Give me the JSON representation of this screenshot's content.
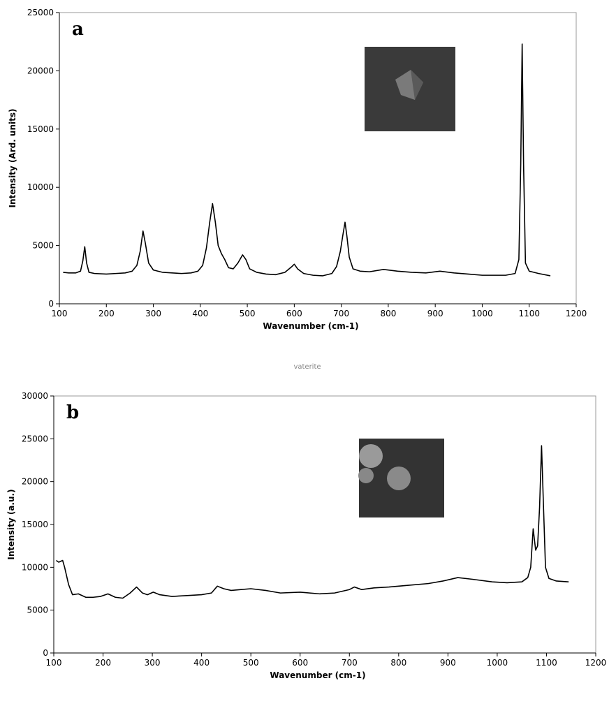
{
  "chart_data": [
    {
      "type": "line",
      "annotation": "a",
      "x_label": "Wavenumber (cm-1)",
      "y_label": "Intensity (Ard. units)",
      "x": [
        108,
        120,
        135,
        145,
        150,
        154,
        158,
        163,
        175,
        200,
        220,
        240,
        255,
        265,
        272,
        278,
        283,
        290,
        300,
        320,
        340,
        360,
        380,
        395,
        405,
        413,
        420,
        426,
        432,
        438,
        445,
        452,
        460,
        470,
        480,
        490,
        497,
        505,
        520,
        540,
        560,
        580,
        595,
        600,
        607,
        620,
        640,
        660,
        680,
        690,
        698,
        703,
        708,
        712,
        717,
        725,
        740,
        760,
        790,
        820,
        850,
        880,
        910,
        940,
        970,
        1000,
        1030,
        1050,
        1070,
        1078,
        1082,
        1085,
        1088,
        1092,
        1100,
        1120,
        1145
      ],
      "series": [
        {
          "color": "#000000",
          "values": [
            2700,
            2650,
            2650,
            2800,
            3700,
            4900,
            3500,
            2700,
            2600,
            2550,
            2600,
            2650,
            2800,
            3300,
            4500,
            6250,
            5200,
            3500,
            2900,
            2700,
            2650,
            2600,
            2650,
            2800,
            3300,
            4800,
            7000,
            8600,
            7000,
            5000,
            4300,
            3800,
            3100,
            3000,
            3500,
            4200,
            3800,
            3000,
            2700,
            2550,
            2500,
            2700,
            3200,
            3400,
            3000,
            2600,
            2450,
            2400,
            2600,
            3200,
            4500,
            5800,
            7000,
            5800,
            4000,
            3000,
            2800,
            2750,
            2950,
            2800,
            2700,
            2650,
            2800,
            2650,
            2550,
            2450,
            2450,
            2450,
            2600,
            3800,
            12000,
            22300,
            12000,
            3500,
            2800,
            2600,
            2400
          ]
        }
      ],
      "xlim": [
        100,
        1200
      ],
      "xticks": [
        100,
        200,
        300,
        400,
        500,
        600,
        700,
        800,
        900,
        1000,
        1100,
        1200
      ],
      "ylim": [
        0,
        25000
      ],
      "yticks": [
        0,
        5000,
        10000,
        15000,
        20000,
        25000
      ]
    },
    {
      "type": "line",
      "annotation": "b",
      "x_label": "Wavenumber (cm-1)",
      "y_label": "Intensity (a.u.)",
      "x": [
        105,
        110,
        118,
        122,
        130,
        138,
        150,
        165,
        180,
        195,
        210,
        225,
        240,
        255,
        268,
        280,
        290,
        302,
        315,
        340,
        370,
        400,
        420,
        432,
        445,
        460,
        480,
        500,
        530,
        560,
        600,
        640,
        670,
        700,
        710,
        725,
        750,
        780,
        820,
        860,
        890,
        920,
        950,
        990,
        1020,
        1050,
        1062,
        1068,
        1073,
        1078,
        1082,
        1086,
        1090,
        1094,
        1098,
        1105,
        1120,
        1145
      ],
      "series": [
        {
          "color": "#000000",
          "values": [
            10800,
            10600,
            10800,
            10000,
            8000,
            6800,
            6900,
            6500,
            6500,
            6600,
            6900,
            6500,
            6400,
            7000,
            7700,
            7000,
            6800,
            7100,
            6800,
            6600,
            6700,
            6800,
            7000,
            7800,
            7500,
            7300,
            7400,
            7500,
            7300,
            7000,
            7100,
            6900,
            7000,
            7400,
            7700,
            7400,
            7600,
            7700,
            7900,
            8100,
            8400,
            8800,
            8600,
            8300,
            8200,
            8300,
            8800,
            10000,
            14500,
            12000,
            12500,
            17000,
            24200,
            17000,
            10000,
            8700,
            8400,
            8300
          ]
        }
      ],
      "xlim": [
        100,
        1200
      ],
      "xticks": [
        100,
        200,
        300,
        400,
        500,
        600,
        700,
        800,
        900,
        1000,
        1100,
        1200
      ],
      "ylim": [
        0,
        30000
      ],
      "yticks": [
        0,
        5000,
        10000,
        15000,
        20000,
        25000,
        30000
      ]
    }
  ],
  "caption": "vaterite"
}
